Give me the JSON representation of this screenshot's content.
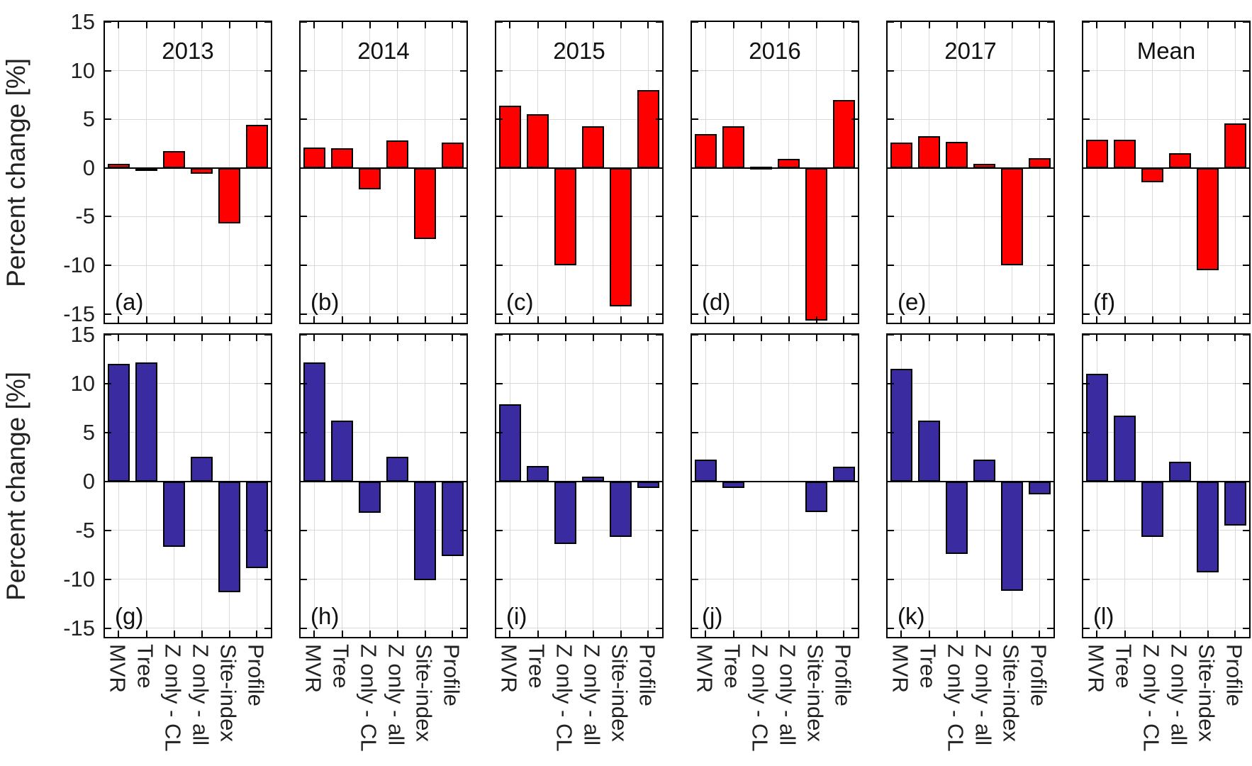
{
  "chart_data": {
    "type": "bar",
    "title": "",
    "ylabel": "Percent change [%]",
    "xlabel": "",
    "categories": [
      "MVR",
      "Tree",
      "Z only - CL",
      "Z only - all",
      "Site-index",
      "Profile"
    ],
    "yticks": [
      15,
      10,
      5,
      0,
      -5,
      -10,
      -15
    ],
    "ylim": [
      -15.9,
      15
    ],
    "grid": true,
    "legend_position": "none",
    "colors": {
      "top_row_bars": "#ff0000",
      "bottom_row_bars": "#3a2ba0",
      "gridline": "#d9d9d9",
      "axis": "#000000"
    },
    "rows": [
      {
        "name": "top",
        "color": "#ff0000",
        "panels": [
          {
            "letter": "(a)",
            "title": "2013",
            "values": [
              0.4,
              -0.2,
              1.7,
              -0.6,
              -5.7,
              4.4
            ]
          },
          {
            "letter": "(b)",
            "title": "2014",
            "values": [
              2.1,
              2.0,
              -2.2,
              2.8,
              -7.3,
              2.6
            ]
          },
          {
            "letter": "(c)",
            "title": "2015",
            "values": [
              6.4,
              5.5,
              -10.0,
              4.3,
              -14.2,
              8.0
            ]
          },
          {
            "letter": "(d)",
            "title": "2016",
            "values": [
              3.5,
              4.3,
              0.1,
              0.9,
              -15.7,
              7.0
            ]
          },
          {
            "letter": "(e)",
            "title": "2017",
            "values": [
              2.6,
              3.3,
              2.7,
              0.4,
              -10.0,
              1.0
            ]
          },
          {
            "letter": "(f)",
            "title": "Mean",
            "values": [
              2.9,
              2.9,
              -1.5,
              1.5,
              -10.5,
              4.6
            ]
          }
        ]
      },
      {
        "name": "bottom",
        "color": "#3a2ba0",
        "panels": [
          {
            "letter": "(g)",
            "title": "",
            "values": [
              12.0,
              12.2,
              -6.7,
              2.5,
              -11.3,
              -8.9
            ]
          },
          {
            "letter": "(h)",
            "title": "",
            "values": [
              12.2,
              6.2,
              -3.2,
              2.5,
              -10.1,
              -7.6
            ]
          },
          {
            "letter": "(i)",
            "title": "",
            "values": [
              7.9,
              1.6,
              -6.4,
              0.5,
              -5.7,
              -0.7
            ]
          },
          {
            "letter": "(j)",
            "title": "",
            "values": [
              2.2,
              -0.7,
              0.0,
              0.0,
              -3.1,
              1.5
            ]
          },
          {
            "letter": "(k)",
            "title": "",
            "values": [
              11.5,
              6.2,
              -7.4,
              2.2,
              -11.2,
              -1.3
            ]
          },
          {
            "letter": "(l)",
            "title": "",
            "values": [
              11.0,
              6.7,
              -5.7,
              2.0,
              -9.3,
              -4.5
            ]
          }
        ]
      }
    ]
  }
}
